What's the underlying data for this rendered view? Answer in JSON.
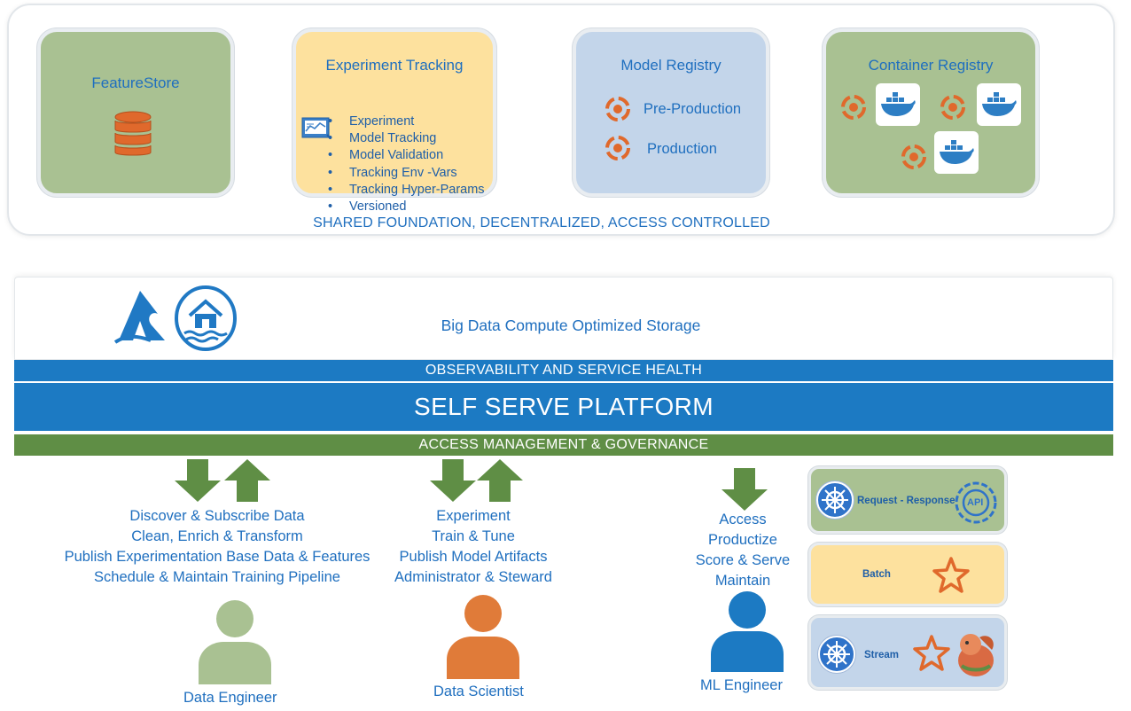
{
  "foundation": {
    "caption": "SHARED FOUNDATION, DECENTRALIZED, ACCESS CONTROLLED",
    "feature_store": {
      "title": "FeatureStore",
      "color": "#a9c192"
    },
    "experiment_tracking": {
      "title": "Experiment Tracking",
      "color": "#fde19e",
      "items": [
        "Experiment",
        "Model Tracking",
        "Model Validation",
        "Tracking Env -Vars",
        "Tracking Hyper-Params",
        "Versioned"
      ]
    },
    "model_registry": {
      "title": "Model Registry",
      "color": "#c3d5ea",
      "items": [
        "Pre-Production",
        "Production"
      ]
    },
    "container_registry": {
      "title": "Container Registry",
      "color": "#a9c192"
    }
  },
  "platform": {
    "storage_label": "Big Data Compute Optimized Storage",
    "observability": "OBSERVABILITY AND SERVICE HEALTH",
    "self_serve": "SELF SERVE PLATFORM",
    "access_mgmt": "ACCESS MANAGEMENT & GOVERNANCE",
    "blue": "#1c7ac3",
    "green": "#5f8e45"
  },
  "roles": {
    "data_engineer": {
      "label": "Data Engineer",
      "color": "#a9c192",
      "lines": [
        "Discover & Subscribe Data",
        "Clean, Enrich & Transform",
        "Publish Experimentation Base Data & Features",
        "Schedule & Maintain Training Pipeline"
      ]
    },
    "data_scientist": {
      "label": "Data Scientist",
      "color": "#e07b39",
      "lines": [
        "Experiment",
        "Train & Tune",
        "Publish Model Artifacts",
        "Administrator & Steward"
      ]
    },
    "ml_engineer": {
      "label": "ML Engineer",
      "color": "#1c7ac3",
      "lines": [
        "Access",
        "Productize",
        "Score & Serve",
        "Maintain"
      ]
    }
  },
  "serving_modes": [
    {
      "label": "Request - Response",
      "color": "#a9c192"
    },
    {
      "label": "Batch",
      "color": "#fde19e"
    },
    {
      "label": "Stream",
      "color": "#c3d5ea"
    }
  ],
  "icons": {
    "api": "API",
    "arrow_color": "#5f8e45",
    "cycle_color": "#e0692c"
  }
}
